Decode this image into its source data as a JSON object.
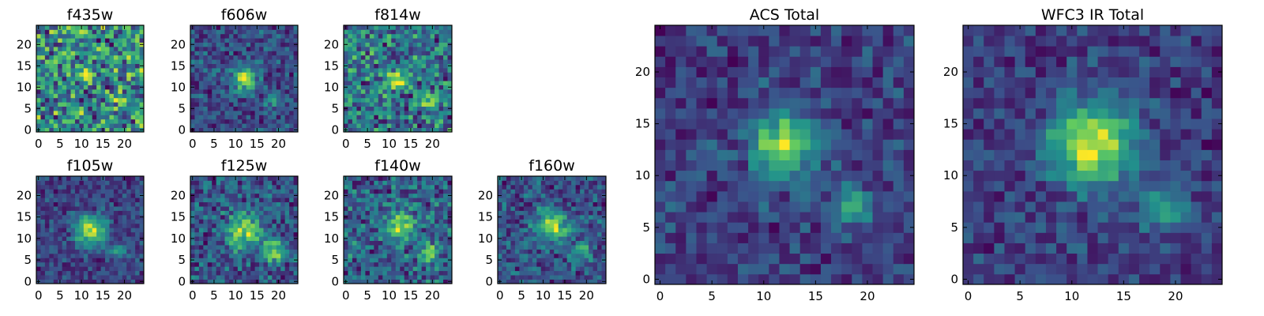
{
  "chart_data": [
    {
      "type": "heatmap",
      "title": "f435w",
      "xlim": [
        -0.5,
        24.5
      ],
      "ylim": [
        -0.5,
        24.5
      ],
      "xticks": [
        0,
        5,
        10,
        15,
        20
      ],
      "yticks": [
        0,
        5,
        10,
        15,
        20
      ],
      "sources": [
        [
          12,
          13,
          1.0,
          0.45
        ],
        [
          19,
          7,
          1.0,
          0.35
        ]
      ],
      "seed": 11,
      "noise": 0.55
    },
    {
      "type": "heatmap",
      "title": "f606w",
      "xlim": [
        -0.5,
        24.5
      ],
      "ylim": [
        -0.5,
        24.5
      ],
      "xticks": [
        0,
        5,
        10,
        15,
        20
      ],
      "yticks": [
        0,
        5,
        10,
        15,
        20
      ],
      "sources": [
        [
          12,
          12,
          2.0,
          0.85
        ],
        [
          19,
          7,
          1.2,
          0.45
        ]
      ],
      "seed": 23,
      "noise": 0.45
    },
    {
      "type": "heatmap",
      "title": "f814w",
      "xlim": [
        -0.5,
        24.5
      ],
      "ylim": [
        -0.5,
        24.5
      ],
      "xticks": [
        0,
        5,
        10,
        15,
        20
      ],
      "yticks": [
        0,
        5,
        10,
        15,
        20
      ],
      "sources": [
        [
          12,
          12,
          1.6,
          0.6
        ],
        [
          19,
          7,
          1.2,
          0.4
        ]
      ],
      "seed": 37,
      "noise": 0.55
    },
    {
      "type": "heatmap",
      "title": "f105w",
      "xlim": [
        -0.5,
        24.5
      ],
      "ylim": [
        -0.5,
        24.5
      ],
      "xticks": [
        0,
        5,
        10,
        15,
        20
      ],
      "yticks": [
        0,
        5,
        10,
        15,
        20
      ],
      "sources": [
        [
          12,
          12,
          2.5,
          0.9
        ],
        [
          19,
          7,
          1.5,
          0.4
        ]
      ],
      "seed": 41,
      "noise": 0.35
    },
    {
      "type": "heatmap",
      "title": "f125w",
      "xlim": [
        -0.5,
        24.5
      ],
      "ylim": [
        -0.5,
        24.5
      ],
      "xticks": [
        0,
        5,
        10,
        15,
        20
      ],
      "yticks": [
        0,
        5,
        10,
        15,
        20
      ],
      "sources": [
        [
          12,
          12,
          2.8,
          0.6
        ],
        [
          19,
          7,
          1.8,
          0.55
        ]
      ],
      "seed": 53,
      "noise": 0.4
    },
    {
      "type": "heatmap",
      "title": "f140w",
      "xlim": [
        -0.5,
        24.5
      ],
      "ylim": [
        -0.5,
        24.5
      ],
      "xticks": [
        0,
        5,
        10,
        15,
        20
      ],
      "yticks": [
        0,
        5,
        10,
        15,
        20
      ],
      "sources": [
        [
          13,
          13,
          2.2,
          0.65
        ],
        [
          19,
          7,
          1.4,
          0.5
        ]
      ],
      "seed": 67,
      "noise": 0.45
    },
    {
      "type": "heatmap",
      "title": "f160w",
      "xlim": [
        -0.5,
        24.5
      ],
      "ylim": [
        -0.5,
        24.5
      ],
      "xticks": [
        0,
        5,
        10,
        15,
        20
      ],
      "yticks": [
        0,
        5,
        10,
        15,
        20
      ],
      "sources": [
        [
          12,
          13,
          2.5,
          0.75
        ],
        [
          19,
          7,
          1.5,
          0.4
        ]
      ],
      "seed": 71,
      "noise": 0.4
    },
    {
      "type": "heatmap",
      "title": "ACS Total",
      "xlim": [
        -0.5,
        24.5
      ],
      "ylim": [
        -0.5,
        24.5
      ],
      "xticks": [
        0,
        5,
        10,
        15,
        20
      ],
      "yticks": [
        0,
        5,
        10,
        15,
        20
      ],
      "sources": [
        [
          12,
          13,
          2.2,
          0.85
        ],
        [
          19,
          7,
          1.3,
          0.55
        ]
      ],
      "seed": 83,
      "noise": 0.35
    },
    {
      "type": "heatmap",
      "title": "WFC3 IR Total",
      "xlim": [
        -0.5,
        24.5
      ],
      "ylim": [
        -0.5,
        24.5
      ],
      "xticks": [
        0,
        5,
        10,
        15,
        20
      ],
      "yticks": [
        0,
        5,
        10,
        15,
        20
      ],
      "sources": [
        [
          12,
          13,
          2.8,
          0.95
        ],
        [
          19,
          7,
          1.6,
          0.5
        ]
      ],
      "seed": 97,
      "noise": 0.3
    }
  ],
  "colormap": [
    "#440154",
    "#3b528b",
    "#21918c",
    "#5ec962",
    "#fde725"
  ]
}
